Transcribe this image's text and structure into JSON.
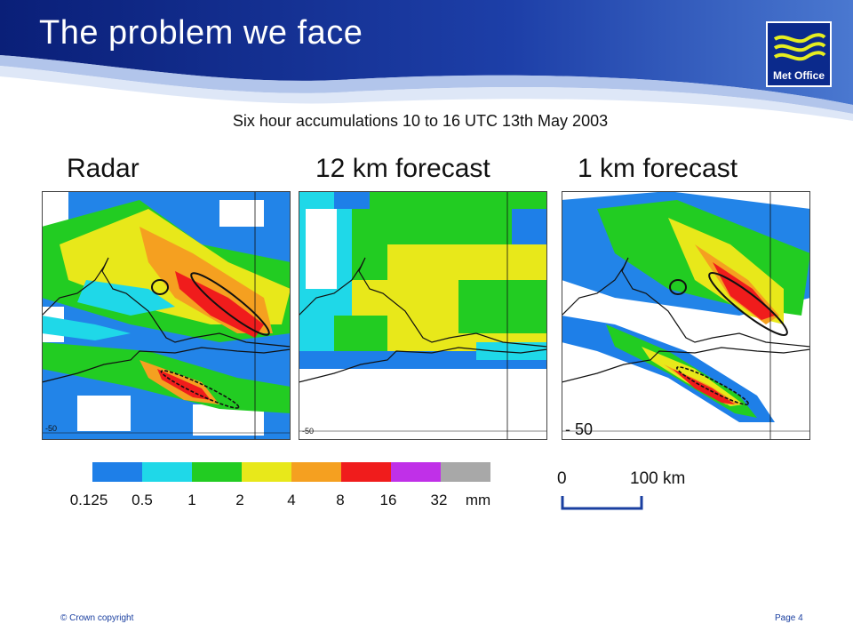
{
  "slide": {
    "title": "The problem we face",
    "subtitle": "Six hour accumulations 10 to 16 UTC 13th May 2003"
  },
  "logo": {
    "text": "Met Office"
  },
  "panels": [
    {
      "title": "Radar",
      "lat_label": "-50"
    },
    {
      "title": "12 km forecast",
      "lat_label": "-50"
    },
    {
      "title": "1 km forecast",
      "lat_label": "- 50"
    }
  ],
  "legend": {
    "colors": [
      "#1e7fe8",
      "#1fd8e8",
      "#22cc22",
      "#e8e81a",
      "#f5a020",
      "#f01c1c",
      "#c030e8",
      "#a8a8a8"
    ],
    "labels": [
      "0.125",
      "0.5",
      "1",
      "2",
      "4",
      "8",
      "16",
      "32",
      "mm"
    ]
  },
  "scale": {
    "start": "0",
    "end": "100 km"
  },
  "footer": {
    "copyright": "© Crown copyright",
    "page": "Page 4"
  },
  "colors": {
    "header_blue": "#0b2a8c",
    "footer_text": "#1a3fa0"
  }
}
